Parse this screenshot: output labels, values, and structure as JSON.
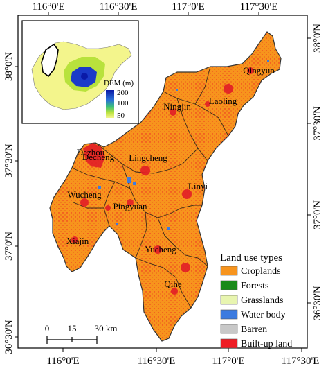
{
  "map": {
    "top_ticks": [
      "116°0'E",
      "116°30'E",
      "117°0'E",
      "117°30'E"
    ],
    "bottom_ticks": [
      "116°0'E",
      "116°30'E",
      "117°0'E",
      "117°30'E"
    ],
    "left_ticks": [
      "38°0'N",
      "37°30'N",
      "37°0'N",
      "36°30'N"
    ],
    "right_ticks": [
      "38°0'N",
      "37°30'N",
      "37°0'N",
      "36°30'N"
    ],
    "places": [
      "Qingyun",
      "Ningjin",
      "Laoling",
      "Dezhou",
      "Decheng",
      "Lingcheng",
      "Linyi",
      "Wucheng",
      "Pingyuan",
      "Xiajin",
      "Yucheng",
      "Qihe"
    ]
  },
  "inset": {
    "dem_title": "DEM (m)",
    "dem_values": [
      "200",
      "100",
      "50"
    ]
  },
  "legend": {
    "title": "Land use types",
    "items": [
      {
        "label": "Croplands",
        "color": "#f7941d"
      },
      {
        "label": "Forests",
        "color": "#1a8a1a"
      },
      {
        "label": "Grasslands",
        "color": "#e8f5b0"
      },
      {
        "label": "Water body",
        "color": "#3b7be0"
      },
      {
        "label": "Barren",
        "color": "#c8c8c8"
      },
      {
        "label": "Built-up land",
        "color": "#ee1c24"
      }
    ]
  },
  "scale": {
    "labels": [
      "0",
      "15",
      "30 km"
    ]
  }
}
